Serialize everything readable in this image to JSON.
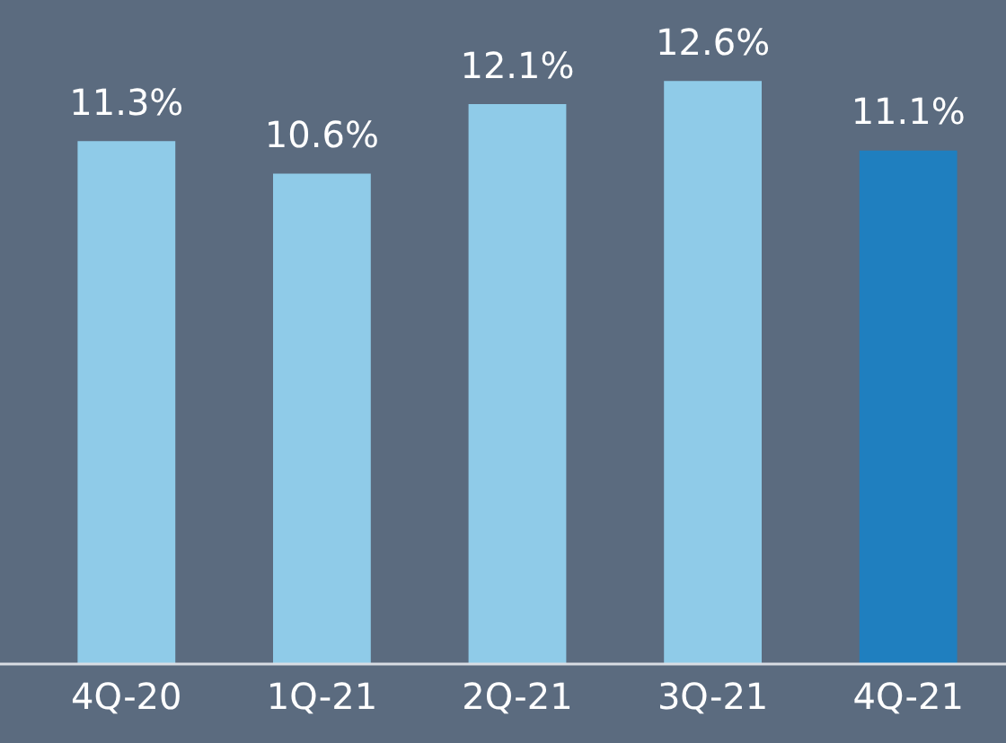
{
  "chart_data": {
    "type": "bar",
    "categories": [
      "4Q-20",
      "1Q-21",
      "2Q-21",
      "3Q-21",
      "4Q-21"
    ],
    "values": [
      11.3,
      10.6,
      12.1,
      12.6,
      11.1
    ],
    "colors": [
      "#8fcbe8",
      "#8fcbe8",
      "#8fcbe8",
      "#8fcbe8",
      "#1f7fbf"
    ],
    "value_labels": [
      "11.3%",
      "10.6%",
      "12.1%",
      "12.6%",
      "11.1%"
    ],
    "tick_labels": "x",
    "grid": false,
    "legend": false
  }
}
